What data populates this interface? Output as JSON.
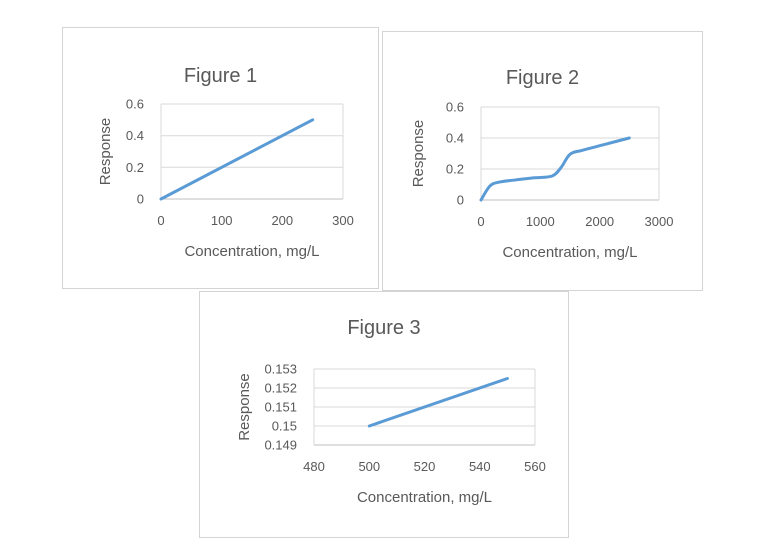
{
  "colors": {
    "series_line": "#5b9bd5",
    "gridline": "#d9d9d9",
    "axis_line": "#bfbfbf",
    "text": "#595959",
    "panel_border": "#d4d4d4",
    "background": "#ffffff"
  },
  "chart_data": [
    {
      "type": "line",
      "title": "Figure 1",
      "xlabel": "Concentration, mg/L",
      "ylabel": "Response",
      "xlim": [
        0,
        300
      ],
      "ylim": [
        0,
        0.6
      ],
      "grid": true,
      "legend": false,
      "xticks": [
        {
          "v": 0,
          "label": "0"
        },
        {
          "v": 100,
          "label": "100"
        },
        {
          "v": 200,
          "label": "200"
        },
        {
          "v": 300,
          "label": "300"
        }
      ],
      "yticks": [
        {
          "v": 0,
          "label": "0"
        },
        {
          "v": 0.2,
          "label": "0.2"
        },
        {
          "v": 0.4,
          "label": "0.4"
        },
        {
          "v": 0.6,
          "label": "0.6"
        }
      ],
      "series": [
        {
          "name": "response-vs-concentration",
          "smooth": false,
          "points": [
            [
              0,
              0
            ],
            [
              250,
              0.5
            ]
          ]
        }
      ]
    },
    {
      "type": "line",
      "title": "Figure 2",
      "xlabel": "Concentration, mg/L",
      "ylabel": "Response",
      "xlim": [
        0,
        3000
      ],
      "ylim": [
        0,
        0.6
      ],
      "grid": true,
      "legend": false,
      "xticks": [
        {
          "v": 0,
          "label": "0"
        },
        {
          "v": 1000,
          "label": "1000"
        },
        {
          "v": 2000,
          "label": "2000"
        },
        {
          "v": 3000,
          "label": "3000"
        }
      ],
      "yticks": [
        {
          "v": 0,
          "label": "0"
        },
        {
          "v": 0.2,
          "label": "0.2"
        },
        {
          "v": 0.4,
          "label": "0.4"
        },
        {
          "v": 0.6,
          "label": "0.6"
        }
      ],
      "series": [
        {
          "name": "response-vs-concentration",
          "smooth": true,
          "points": [
            [
              0,
              0
            ],
            [
              150,
              0.09
            ],
            [
              300,
              0.115
            ],
            [
              600,
              0.13
            ],
            [
              900,
              0.143
            ],
            [
              1200,
              0.155
            ],
            [
              1350,
              0.21
            ],
            [
              1500,
              0.295
            ],
            [
              1700,
              0.32
            ],
            [
              2100,
              0.36
            ],
            [
              2500,
              0.4
            ]
          ]
        }
      ]
    },
    {
      "type": "line",
      "title": "Figure 3",
      "xlabel": "Concentration, mg/L",
      "ylabel": "Response",
      "xlim": [
        480,
        560
      ],
      "ylim": [
        0.149,
        0.153
      ],
      "grid": true,
      "legend": false,
      "xticks": [
        {
          "v": 480,
          "label": "480"
        },
        {
          "v": 500,
          "label": "500"
        },
        {
          "v": 520,
          "label": "520"
        },
        {
          "v": 540,
          "label": "540"
        },
        {
          "v": 560,
          "label": "560"
        }
      ],
      "yticks": [
        {
          "v": 0.149,
          "label": "0.149"
        },
        {
          "v": 0.15,
          "label": "0.15"
        },
        {
          "v": 0.151,
          "label": "0.151"
        },
        {
          "v": 0.152,
          "label": "0.152"
        },
        {
          "v": 0.153,
          "label": "0.153"
        }
      ],
      "series": [
        {
          "name": "response-vs-concentration",
          "smooth": false,
          "points": [
            [
              500,
              0.15
            ],
            [
              550,
              0.1525
            ]
          ]
        }
      ]
    }
  ]
}
